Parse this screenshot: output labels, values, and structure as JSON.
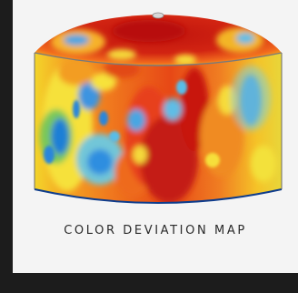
{
  "caption": "COLOR DEVIATION MAP",
  "colors": {
    "frame": "#1c1c1c",
    "panel": "#f4f4f4",
    "deviation_high": "#c61a10",
    "deviation_mid_high": "#f06a1a",
    "deviation_mid": "#f6d21a",
    "deviation_low": "#62c86a",
    "deviation_min": "#1f7fd6"
  }
}
